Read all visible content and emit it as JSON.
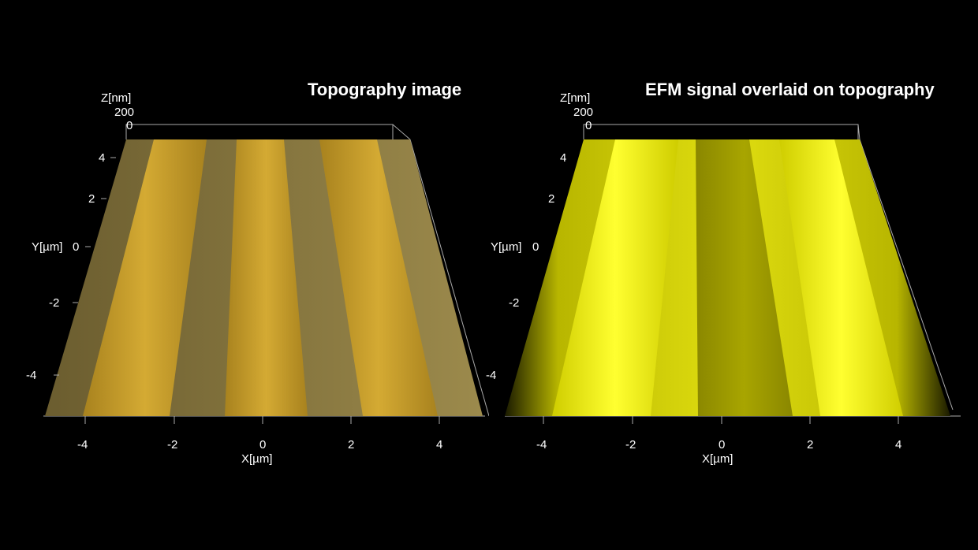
{
  "panels": [
    {
      "title": "Topography image",
      "colors": {
        "surface": "#8a7a45",
        "stripe": "#c9a12a",
        "stripe_hi": "#e8c23c",
        "gap": "#7a6d3e"
      },
      "axes": {
        "z_label": "Z[nm]",
        "z_ticks": [
          "200",
          "0"
        ],
        "y_label": "Y[µm]",
        "y_ticks": [
          "4",
          "2",
          "0",
          "-2",
          "-4"
        ],
        "x_label": "X[µm]",
        "x_ticks": [
          "-4",
          "-2",
          "0",
          "2",
          "4"
        ]
      }
    },
    {
      "title": "EFM signal overlaid on topography",
      "colors": {
        "surface": "#d6d400",
        "stripe": "#f2f000",
        "stripe_hi": "#ffff40",
        "gap": "#6f6c00"
      },
      "axes": {
        "z_label": "Z[nm]",
        "z_ticks": [
          "200",
          "0"
        ],
        "y_label": "Y[µm]",
        "y_ticks": [
          "4",
          "2",
          "0",
          "-2",
          "-4"
        ],
        "x_label": "X[µm]",
        "x_ticks": [
          "-4",
          "-2",
          "0",
          "2",
          "4"
        ]
      }
    }
  ]
}
